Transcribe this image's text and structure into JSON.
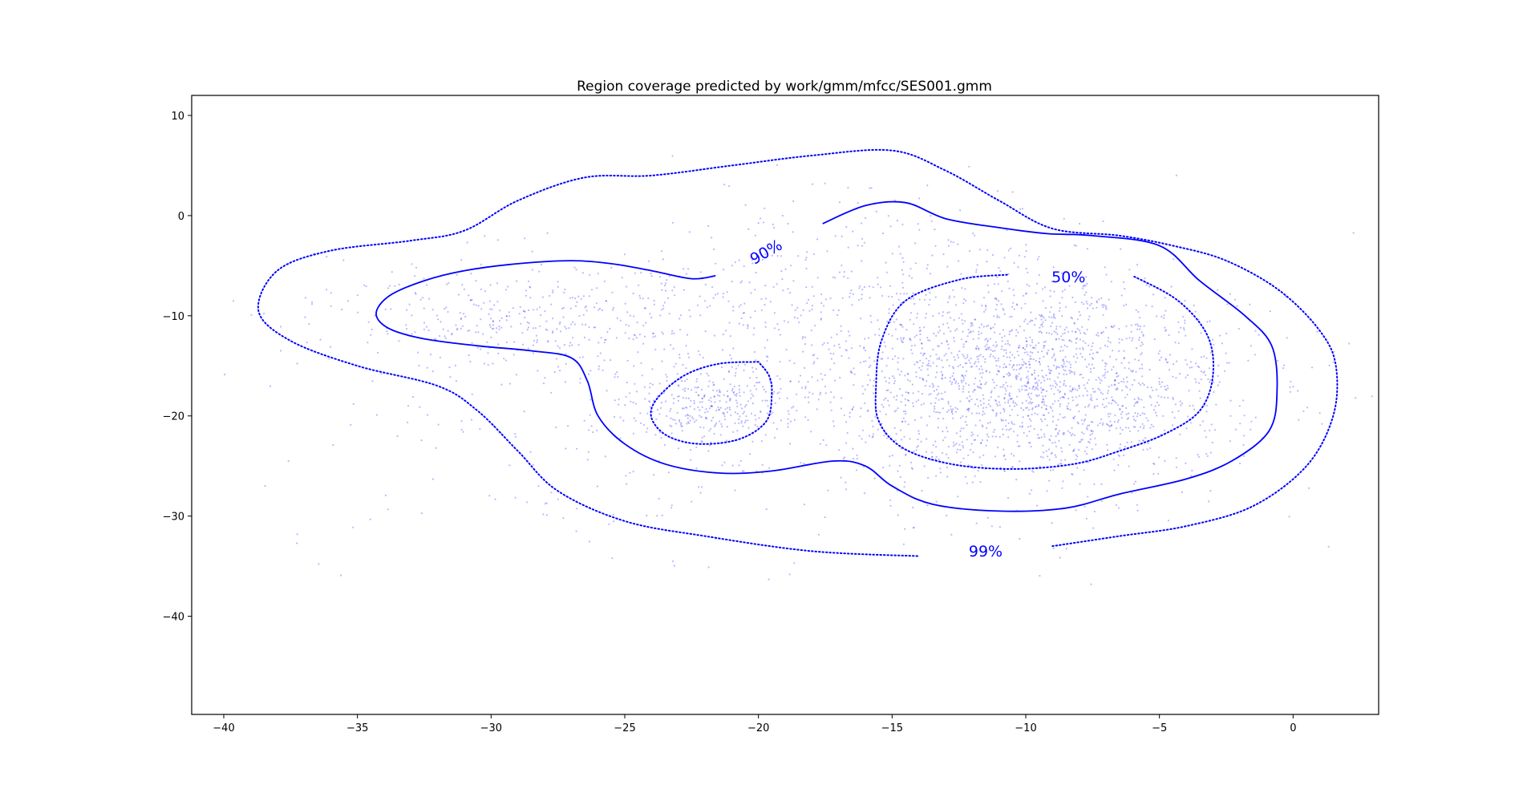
{
  "chart_data": {
    "type": "scatter",
    "title": "Region coverage predicted by work/gmm/mfcc/SES001.gmm",
    "xlabel": "",
    "ylabel": "",
    "xlim": [
      -41.2,
      3.2
    ],
    "ylim": [
      -49.8,
      12.0
    ],
    "xticks": [
      -40,
      -35,
      -30,
      -25,
      -20,
      -15,
      -10,
      -5,
      0
    ],
    "xtick_labels": [
      "−40",
      "−35",
      "−30",
      "−25",
      "−20",
      "−15",
      "−10",
      "−5",
      "0"
    ],
    "yticks": [
      10,
      0,
      -10,
      -20,
      -30,
      -40
    ],
    "ytick_labels": [
      "10",
      "0",
      "−10",
      "−20",
      "−30",
      "−40"
    ],
    "grid": false,
    "legend": "none",
    "colors": {
      "points": "#0000ff",
      "contours": "#0000ff"
    },
    "scatter": {
      "approx_count": 3300,
      "clusters": [
        {
          "center": [
            -9.5,
            -16.5
          ],
          "spread": [
            3.6,
            4.8
          ],
          "weight": 0.48
        },
        {
          "center": [
            -22.0,
            -19.0
          ],
          "spread": [
            1.6,
            2.0
          ],
          "weight": 0.08
        },
        {
          "center": [
            -16.0,
            -12.0
          ],
          "spread": [
            5.5,
            7.0
          ],
          "weight": 0.2
        },
        {
          "center": [
            -28.5,
            -10.0
          ],
          "spread": [
            4.0,
            3.0
          ],
          "weight": 0.12
        },
        {
          "center": [
            -17.0,
            -20.0
          ],
          "spread": [
            10.0,
            8.0
          ],
          "weight": 0.12
        }
      ]
    },
    "contours": [
      {
        "level": "50%",
        "style": "dotted",
        "paths": [
          [
            [
              -10.7,
              -5.9
            ],
            [
              -12.5,
              -6.4
            ],
            [
              -14.5,
              -8.5
            ],
            [
              -15.4,
              -12.5
            ],
            [
              -15.6,
              -17.0
            ],
            [
              -15.5,
              -20.5
            ],
            [
              -14.6,
              -23.2
            ],
            [
              -12.8,
              -24.8
            ],
            [
              -10.5,
              -25.3
            ],
            [
              -8.2,
              -24.8
            ],
            [
              -6.5,
              -23.5
            ],
            [
              -4.8,
              -21.8
            ],
            [
              -3.5,
              -19.5
            ],
            [
              -3.0,
              -16.0
            ],
            [
              -3.2,
              -12.0
            ],
            [
              -4.3,
              -8.5
            ],
            [
              -6.0,
              -6.0
            ]
          ],
          [
            [
              -20.0,
              -14.6
            ],
            [
              -21.5,
              -14.8
            ],
            [
              -22.8,
              -16.0
            ],
            [
              -23.8,
              -18.3
            ],
            [
              -24.0,
              -20.2
            ],
            [
              -23.4,
              -22.0
            ],
            [
              -22.2,
              -22.8
            ],
            [
              -20.7,
              -22.3
            ],
            [
              -19.7,
              -20.5
            ],
            [
              -19.5,
              -17.8
            ],
            [
              -19.6,
              -16.0
            ],
            [
              -20.0,
              -14.6
            ]
          ]
        ],
        "label": {
          "text": "50%",
          "at": [
            -8.4,
            -6.2
          ],
          "rotation": 0
        }
      },
      {
        "level": "90%",
        "style": "solid",
        "paths": [
          [
            [
              -21.6,
              -6.0
            ],
            [
              -22.5,
              -6.3
            ],
            [
              -24.0,
              -5.5
            ],
            [
              -25.5,
              -4.8
            ],
            [
              -27.0,
              -4.5
            ],
            [
              -29.0,
              -4.8
            ],
            [
              -31.0,
              -5.5
            ],
            [
              -32.5,
              -6.5
            ],
            [
              -33.8,
              -8.0
            ],
            [
              -34.3,
              -9.8
            ],
            [
              -33.8,
              -11.3
            ],
            [
              -32.5,
              -12.3
            ],
            [
              -30.5,
              -13.0
            ],
            [
              -28.5,
              -13.5
            ],
            [
              -27.0,
              -14.2
            ],
            [
              -26.4,
              -16.5
            ],
            [
              -26.0,
              -20.0
            ],
            [
              -25.0,
              -22.8
            ],
            [
              -23.5,
              -24.8
            ],
            [
              -21.5,
              -25.7
            ],
            [
              -19.5,
              -25.5
            ],
            [
              -17.2,
              -24.5
            ],
            [
              -16.0,
              -25.0
            ],
            [
              -15.0,
              -27.0
            ],
            [
              -13.5,
              -28.8
            ],
            [
              -11.0,
              -29.5
            ],
            [
              -8.5,
              -29.2
            ],
            [
              -6.5,
              -27.8
            ],
            [
              -4.0,
              -26.3
            ],
            [
              -2.3,
              -24.5
            ],
            [
              -0.9,
              -21.5
            ],
            [
              -0.6,
              -17.5
            ],
            [
              -0.8,
              -13.0
            ],
            [
              -1.8,
              -10.0
            ],
            [
              -3.5,
              -6.5
            ],
            [
              -5.0,
              -3.0
            ],
            [
              -7.5,
              -2.0
            ],
            [
              -9.2,
              -1.8
            ],
            [
              -11.0,
              -1.2
            ],
            [
              -13.0,
              -0.3
            ],
            [
              -14.5,
              1.3
            ],
            [
              -16.0,
              1.0
            ],
            [
              -17.6,
              -0.8
            ]
          ]
        ],
        "label": {
          "text": "90%",
          "at": [
            -19.7,
            -3.7
          ],
          "rotation": -30
        }
      },
      {
        "level": "99%",
        "style": "dotted",
        "paths": [
          [
            [
              -9.0,
              -33.0
            ],
            [
              -6.5,
              -32.0
            ],
            [
              -4.0,
              -31.0
            ],
            [
              -1.5,
              -29.0
            ],
            [
              0.5,
              -25.0
            ],
            [
              1.5,
              -20.0
            ],
            [
              1.6,
              -15.0
            ],
            [
              1.0,
              -11.5
            ],
            [
              -0.5,
              -7.5
            ],
            [
              -2.5,
              -4.5
            ],
            [
              -4.5,
              -3.0
            ],
            [
              -6.5,
              -2.0
            ],
            [
              -9.0,
              -1.3
            ],
            [
              -11.0,
              1.5
            ],
            [
              -13.0,
              4.5
            ],
            [
              -15.0,
              6.5
            ],
            [
              -18.0,
              6.0
            ],
            [
              -21.0,
              5.0
            ],
            [
              -24.0,
              4.0
            ],
            [
              -26.5,
              3.8
            ],
            [
              -29.0,
              1.5
            ],
            [
              -31.0,
              -1.5
            ],
            [
              -33.0,
              -2.5
            ],
            [
              -36.0,
              -3.5
            ],
            [
              -38.0,
              -5.5
            ],
            [
              -38.7,
              -9.5
            ],
            [
              -37.5,
              -12.5
            ],
            [
              -35.0,
              -15.0
            ],
            [
              -32.0,
              -17.0
            ],
            [
              -30.5,
              -19.5
            ],
            [
              -29.0,
              -23.5
            ],
            [
              -27.5,
              -27.5
            ],
            [
              -25.0,
              -30.5
            ],
            [
              -22.0,
              -32.0
            ],
            [
              -18.0,
              -33.5
            ],
            [
              -14.0,
              -34.0
            ]
          ]
        ],
        "label": {
          "text": "99%",
          "at": [
            -11.5,
            -33.6
          ],
          "rotation": 0
        }
      }
    ]
  }
}
